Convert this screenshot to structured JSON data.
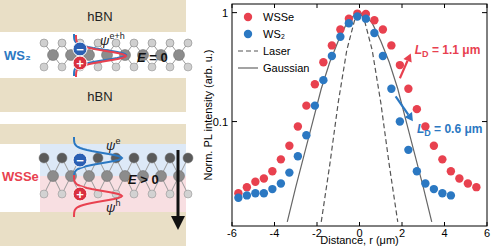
{
  "chart_data": {
    "type": "scatter",
    "y_label": "Norm. PL intensity (arb. u.)",
    "x_label": "Distance, r (μm)",
    "xlim": [
      -6,
      6
    ],
    "xticks": [
      -6,
      -4,
      -2,
      0,
      2,
      4,
      6
    ],
    "ylim": [
      0.011,
      1.2
    ],
    "yticks": [
      0.1,
      1
    ],
    "log": "y",
    "legend": "upper left",
    "series": [
      {
        "name": "WSSe",
        "color": "#e8414f",
        "type": "scatter",
        "marker": "circle",
        "x": [
          -5.7,
          -5.3,
          -4.9,
          -4.5,
          -4.1,
          -3.7,
          -3.3,
          -2.9,
          -2.5,
          -2.1,
          -1.7,
          -1.3,
          -0.9,
          -0.5,
          -0.1,
          0.3,
          0.7,
          1.1,
          1.5,
          1.9,
          2.3,
          2.7,
          3.1,
          3.5,
          3.9,
          4.3,
          4.7,
          5.1,
          5.5
        ],
        "values": [
          0.022,
          0.025,
          0.028,
          0.03,
          0.035,
          0.045,
          0.06,
          0.09,
          0.14,
          0.22,
          0.35,
          0.5,
          0.7,
          0.88,
          0.98,
          0.97,
          0.85,
          0.7,
          0.5,
          0.33,
          0.2,
          0.13,
          0.09,
          0.06,
          0.045,
          0.035,
          0.03,
          0.027,
          0.025
        ]
      },
      {
        "name": "WS₂",
        "color": "#2b78c2",
        "type": "scatter",
        "marker": "circle",
        "x": [
          -5.7,
          -5.3,
          -4.9,
          -4.5,
          -4.1,
          -3.7,
          -3.3,
          -2.9,
          -2.5,
          -2.1,
          -1.7,
          -1.3,
          -0.9,
          -0.5,
          -0.1,
          0.3,
          0.7,
          1.1,
          1.5,
          1.9,
          2.3,
          2.7,
          3.1,
          3.5,
          3.9,
          4.3
        ],
        "values": [
          0.02,
          0.021,
          0.022,
          0.022,
          0.024,
          0.027,
          0.034,
          0.048,
          0.075,
          0.14,
          0.24,
          0.4,
          0.6,
          0.8,
          0.92,
          0.88,
          0.65,
          0.4,
          0.2,
          0.1,
          0.055,
          0.035,
          0.027,
          0.024,
          0.022,
          0.021
        ]
      },
      {
        "name": "Laser",
        "color": "#555555",
        "type": "line",
        "line_style": "dashed",
        "x": [
          -1.8,
          -1.4,
          -1.0,
          -0.6,
          -0.2,
          0,
          0.2,
          0.6,
          1.0,
          1.4,
          1.8
        ],
        "values": [
          0.012,
          0.04,
          0.15,
          0.45,
          0.9,
          1,
          0.9,
          0.45,
          0.15,
          0.04,
          0.012
        ]
      },
      {
        "name": "Gaussian",
        "color": "#666666",
        "type": "line",
        "line_style": "solid",
        "x": [
          -3.4,
          -3.0,
          -2.6,
          -2.2,
          -1.8,
          -1.4,
          -1.0,
          -0.6,
          -0.2,
          0,
          0.2,
          0.6,
          1.0,
          1.4,
          1.8,
          2.2,
          2.6,
          3.0,
          3.4
        ],
        "values": [
          0.012,
          0.025,
          0.05,
          0.1,
          0.2,
          0.35,
          0.55,
          0.8,
          0.97,
          1,
          0.97,
          0.8,
          0.55,
          0.35,
          0.2,
          0.1,
          0.05,
          0.025,
          0.012
        ]
      }
    ],
    "annotations": [
      {
        "symbol": "L",
        "subscript": "D",
        "text": " = 1.1 μm",
        "color": "#e8414f",
        "xy": [
          1.9,
          0.25
        ],
        "xytext": [
          2.6,
          0.45
        ]
      },
      {
        "symbol": "L",
        "subscript": "D",
        "text": " = 0.6 μm",
        "color": "#2b78c2",
        "xy": [
          1.7,
          0.17
        ],
        "xytext": [
          2.7,
          0.085
        ]
      }
    ]
  },
  "diagram": {
    "panels": [
      {
        "layers": [
          "hBN",
          "hBN"
        ],
        "material": "WS₂",
        "material_color": "#2b78c2",
        "charges": [
          "−",
          "+"
        ],
        "wavefunctions": [
          {
            "base": "ψ",
            "sup": "e+h"
          }
        ],
        "field": {
          "symbol": "E",
          "text": " = 0"
        }
      },
      {
        "material": "WSSe",
        "material_color": "#e8414f",
        "charges": [
          "−",
          "+"
        ],
        "wavefunctions": [
          {
            "base": "ψ",
            "sup": "e"
          },
          {
            "base": "ψ",
            "sup": "h"
          }
        ],
        "field": {
          "symbol": "E",
          "text": " > 0"
        }
      }
    ]
  }
}
